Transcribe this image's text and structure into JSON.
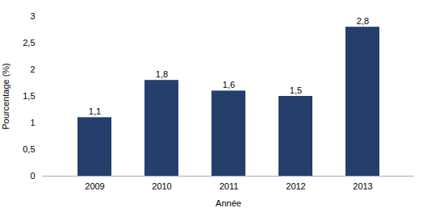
{
  "chart_data": {
    "type": "bar",
    "categories": [
      "2009",
      "2010",
      "2011",
      "2012",
      "2013"
    ],
    "values": [
      1.1,
      1.8,
      1.6,
      1.5,
      2.8
    ],
    "value_labels": [
      "1,1",
      "1,8",
      "1,6",
      "1,5",
      "2,8"
    ],
    "color": "#253E6B",
    "xlabel": "Année",
    "ylabel": "Pourcentage (%)",
    "ylim": [
      0,
      3
    ],
    "yticks": [
      0,
      {
        "value": 0.5,
        "label": "0,5"
      },
      1,
      {
        "value": 1.5,
        "label": "1,5"
      },
      2,
      {
        "value": 2.5,
        "label": "2,5"
      },
      3
    ],
    "data_labels": true,
    "grid": false
  }
}
